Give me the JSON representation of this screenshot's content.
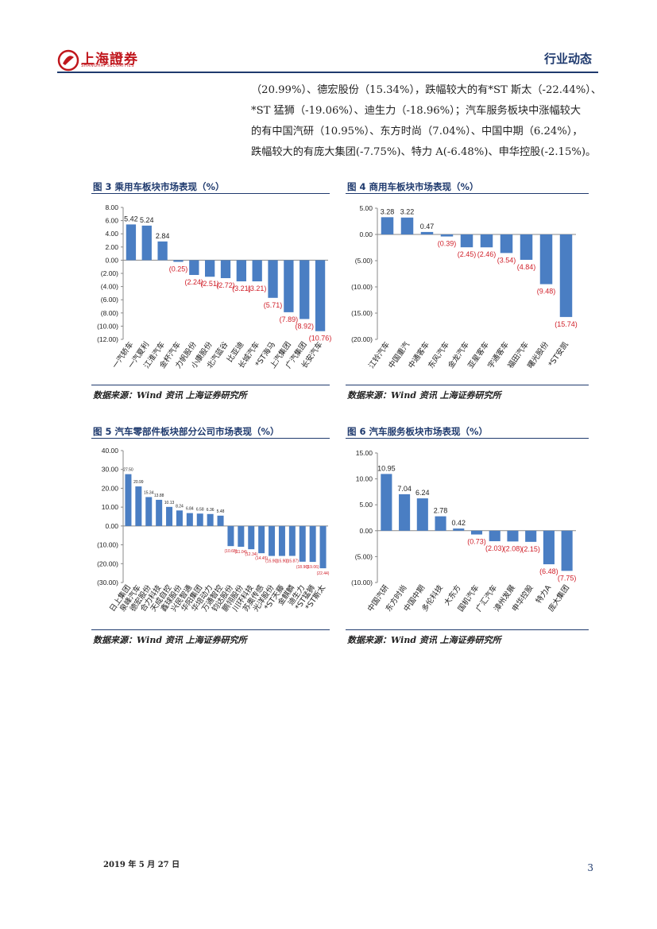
{
  "header": {
    "logo_text": "上海證券",
    "logo_sub": "SHANGHAI SECURITIES",
    "section": "行业动态"
  },
  "paragraph": [
    "（20.99%）、德宏股份（15.34%），跌幅较大的有*ST 斯太（-22.44%）、",
    "*ST 猛狮（-19.06%）、迪生力（-18.96%）；汽车服务板块中涨幅较大",
    "的有中国汽研（10.95%）、东方时尚（7.04%）、中国中期（6.24%），",
    "跌幅较大的有庞大集团(-7.75%)、特力 A(-6.48%)、申华控股(-2.15%)。"
  ],
  "source_text": "数据来源：Wind 资讯 上海证券研究所",
  "colors": {
    "bar": "#4a7ec3",
    "negative_label": "#d0202a",
    "accent": "#1f3a6e"
  },
  "chart_data": [
    {
      "type": "bar",
      "title": "图 3 乘用车板块市场表现（%）",
      "categories": [
        "一汽轿车",
        "一汽夏利",
        "江淮汽车",
        "金杯汽车",
        "力帆股份",
        "小康股份",
        "北汽蓝谷",
        "比亚迪",
        "长城汽车",
        "*ST海马",
        "上汽集团",
        "广汽集团",
        "长安汽车"
      ],
      "values": [
        5.42,
        5.24,
        2.84,
        -0.25,
        -2.24,
        -2.51,
        -2.72,
        -3.21,
        -3.21,
        -5.71,
        -7.89,
        -8.92,
        -10.76
      ],
      "value_labels": [
        "5.42",
        "5.24",
        "2.84",
        "(0.25)",
        "(2.24)",
        "(2.51)",
        "(2.72)",
        "(3.21)",
        "(3.21)",
        "(5.71)",
        "(7.89)",
        "(8.92)",
        "(10.76)"
      ],
      "yticks": [
        "8.00",
        "6.00",
        "4.00",
        "2.00",
        "0.00",
        "(2.00)",
        "(4.00)",
        "(6.00)",
        "(8.00)",
        "(10.00)",
        "(12.00)"
      ],
      "ylim": [
        -12,
        8
      ]
    },
    {
      "type": "bar",
      "title": "图 4 商用车板块市场表现（%）",
      "categories": [
        "江铃汽车",
        "中国重汽",
        "中通客车",
        "东风汽车",
        "金龙汽车",
        "亚星客车",
        "宇通客车",
        "福田汽车",
        "曙光股份",
        "*ST安凯"
      ],
      "values": [
        3.28,
        3.22,
        0.47,
        -0.39,
        -2.45,
        -2.46,
        -3.54,
        -4.84,
        -9.48,
        -15.74
      ],
      "value_labels": [
        "3.28",
        "3.22",
        "0.47",
        "(0.39)",
        "(2.45)",
        "(2.46)",
        "(3.54)",
        "(4.84)",
        "(9.48)",
        "(15.74)"
      ],
      "yticks": [
        "5.00",
        "0.00",
        "(5.00)",
        "(10.00)",
        "(15.00)",
        "(20.00)"
      ],
      "ylim": [
        -20,
        5
      ]
    },
    {
      "type": "bar",
      "title": "图 5 汽车零部件板块部分公司市场表现（%）",
      "categories": [
        "日上集团",
        "泉峰汽车",
        "德宏股份",
        "合力科技",
        "天成自控",
        "鑫球股份",
        "兴民智通",
        "华阳集团",
        "华培动力",
        "万通智控",
        "钧达股份",
        "鹏翎股份",
        "川环科技",
        "苏奥传感",
        "光洋股份",
        "*ST天藤",
        "金麒麟",
        "迪生力",
        "*ST猛狮",
        "*ST斯太"
      ],
      "values": [
        27.5,
        20.99,
        15.34,
        13.88,
        10.13,
        8.24,
        6.84,
        6.58,
        6.36,
        5.48,
        -10.68,
        -11.04,
        -12.34,
        -14.45,
        -15.9,
        -15.9,
        -15.87,
        -18.96,
        -19.06,
        -22.44
      ],
      "value_labels": [
        "27.50",
        "20.99",
        "15.34",
        "13.88",
        "10.13",
        "8.24",
        "6.84",
        "6.58",
        "6.36",
        "5.48",
        "(10.68)",
        "(11.04)",
        "(12.34)",
        "(14.45)",
        "(15.90)",
        "(15.90)",
        "(15.87)",
        "(18.96)",
        "(19.06)",
        "(22.44)"
      ],
      "yticks": [
        "40.00",
        "30.00",
        "20.00",
        "10.00",
        "0.00",
        "(10.00)",
        "(20.00)",
        "(30.00)"
      ],
      "ylim": [
        -30,
        40
      ]
    },
    {
      "type": "bar",
      "title": "图 6 汽车服务板块市场表现（%）",
      "categories": [
        "中国汽研",
        "东方时尚",
        "中国中期",
        "多伦科技",
        "大东方",
        "国机汽车",
        "广汇汽车",
        "漳州发展",
        "申华控股",
        "特力A",
        "庞大集团"
      ],
      "values": [
        10.95,
        7.04,
        6.24,
        2.78,
        0.42,
        -0.73,
        -2.03,
        -2.08,
        -2.15,
        -6.48,
        -7.75
      ],
      "value_labels": [
        "10.95",
        "7.04",
        "6.24",
        "2.78",
        "0.42",
        "(0.73)",
        "(2.03)",
        "(2.08)",
        "(2.15)",
        "(6.48)",
        "(7.75)"
      ],
      "yticks": [
        "15.00",
        "10.00",
        "5.00",
        "0.00",
        "(5.00)",
        "(10.00)"
      ],
      "ylim": [
        -10,
        15
      ]
    }
  ],
  "footer": {
    "date": "2019 年 5 月 27 日",
    "page": "3"
  }
}
